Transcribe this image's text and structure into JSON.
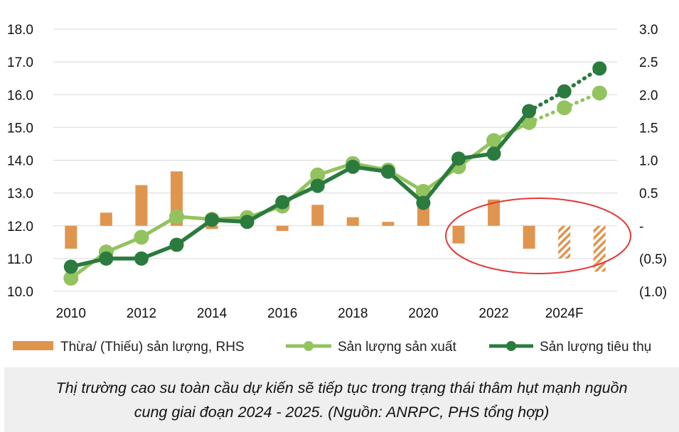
{
  "chart_data": {
    "type": "bar+line",
    "x_categories": [
      "2010",
      "2011",
      "2012",
      "2013",
      "2014",
      "2015",
      "2016",
      "2017",
      "2018",
      "2019",
      "2020",
      "2021",
      "2022",
      "2023",
      "2024F",
      "2025F"
    ],
    "x_tick_labels": [
      "2010",
      "2012",
      "2014",
      "2016",
      "2018",
      "2020",
      "2022",
      "2024F"
    ],
    "left_axis": {
      "ticks": [
        "18.0",
        "17.0",
        "16.0",
        "15.0",
        "14.0",
        "13.0",
        "12.0",
        "11.0",
        "10.0"
      ],
      "ylim": [
        10,
        18
      ]
    },
    "right_axis": {
      "ticks": [
        "3.0",
        "2.5",
        "2.0",
        "1.5",
        "1.0",
        "0.5",
        "-",
        "(0.5)",
        "(1.0)"
      ],
      "ylim": [
        -1.0,
        3.0
      ]
    },
    "series": [
      {
        "name": "Thừa/ (Thiếu) sản lượng, RHS",
        "type": "bar",
        "axis": "right",
        "color": "#e0954f",
        "forecast_pattern": "hatched",
        "values": [
          -0.35,
          0.2,
          0.62,
          0.83,
          -0.05,
          0.0,
          -0.08,
          0.32,
          0.13,
          0.06,
          0.45,
          -0.27,
          0.4,
          -0.35,
          -0.5,
          -0.7
        ]
      },
      {
        "name": "Sản lượng sản xuất",
        "type": "line",
        "axis": "left",
        "color": "#92c35f",
        "forecast_style": "dotted",
        "values": [
          10.4,
          11.2,
          11.65,
          12.28,
          12.2,
          12.25,
          12.6,
          13.55,
          13.9,
          13.7,
          13.05,
          13.8,
          14.6,
          15.15,
          15.6,
          16.05
        ]
      },
      {
        "name": "Sản lượng tiêu thụ",
        "type": "line",
        "axis": "left",
        "color": "#2b7a3e",
        "forecast_style": "dotted",
        "values": [
          10.75,
          11.0,
          11.0,
          11.42,
          12.18,
          12.12,
          12.72,
          13.22,
          13.8,
          13.65,
          12.7,
          14.05,
          14.2,
          15.5,
          16.1,
          16.8
        ]
      }
    ],
    "annotation": "red ellipse around 2021-2025F surplus/deficit bars",
    "grid": true,
    "legend": "bottom"
  },
  "caption": {
    "line1": "Thị trường cao su toàn cầu dự kiến sẽ tiếp tục trong trạng thái thâm hụt mạnh nguồn",
    "line2": "cung giai đoạn 2024 - 2025. (Nguồn: ANRPC, PHS tổng hợp)"
  },
  "colors": {
    "bar": "#e0954f",
    "production": "#92c35f",
    "consumption": "#2b7a3e",
    "ellipse": "#e03a3a",
    "grid": "#d9d9d9"
  }
}
